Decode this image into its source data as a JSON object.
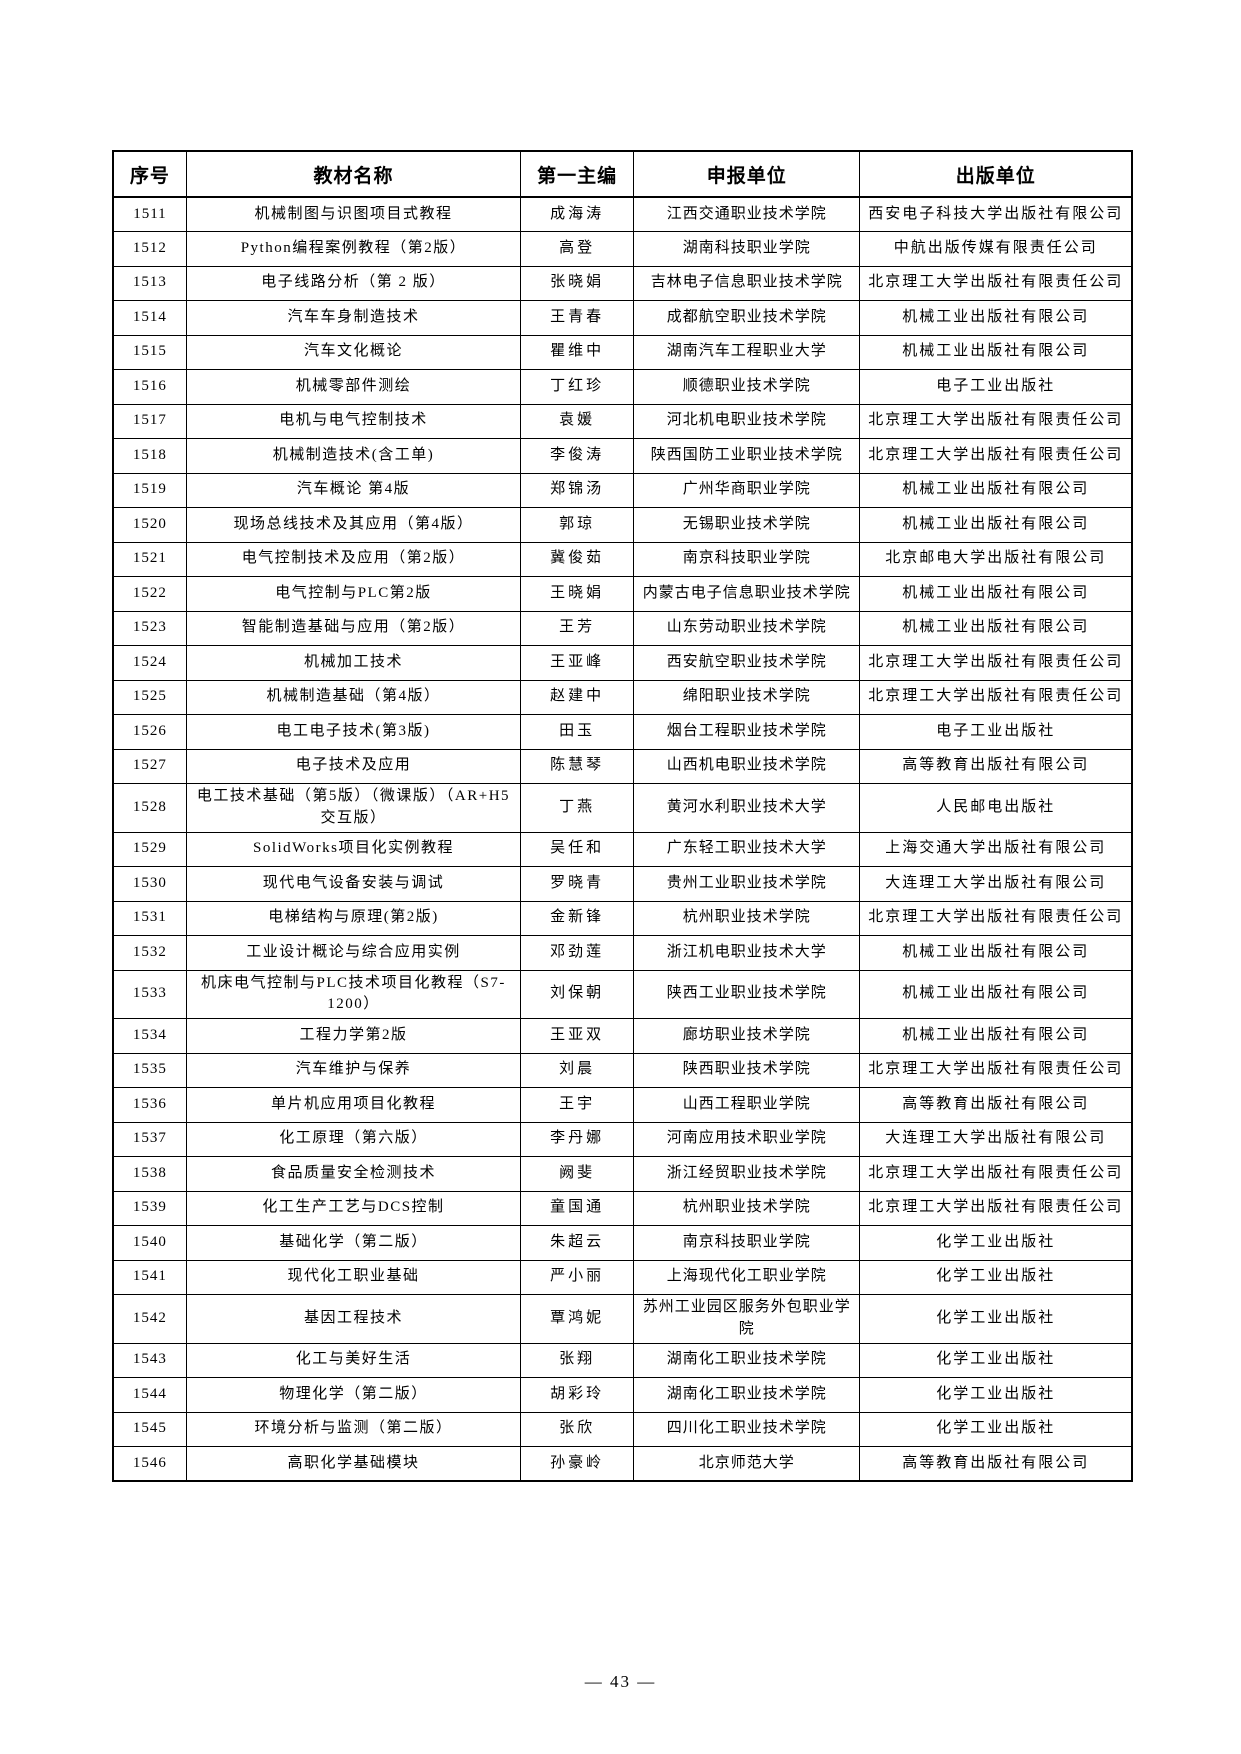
{
  "footer": {
    "page_label": "— 43 —"
  },
  "table": {
    "headers": [
      "序号",
      "教材名称",
      "第一主编",
      "申报单位",
      "出版单位"
    ],
    "rows": [
      [
        "1511",
        "机械制图与识图项目式教程",
        "成海涛",
        "江西交通职业技术学院",
        "西安电子科技大学出版社有限公司"
      ],
      [
        "1512",
        "Python编程案例教程（第2版）",
        "高登",
        "湖南科技职业学院",
        "中航出版传媒有限责任公司"
      ],
      [
        "1513",
        "电子线路分析（第 2 版）",
        "张晓娟",
        "吉林电子信息职业技术学院",
        "北京理工大学出版社有限责任公司"
      ],
      [
        "1514",
        "汽车车身制造技术",
        "王青春",
        "成都航空职业技术学院",
        "机械工业出版社有限公司"
      ],
      [
        "1515",
        "汽车文化概论",
        "瞿维中",
        "湖南汽车工程职业大学",
        "机械工业出版社有限公司"
      ],
      [
        "1516",
        "机械零部件测绘",
        "丁红珍",
        "顺德职业技术学院",
        "电子工业出版社"
      ],
      [
        "1517",
        "电机与电气控制技术",
        "袁媛",
        "河北机电职业技术学院",
        "北京理工大学出版社有限责任公司"
      ],
      [
        "1518",
        "机械制造技术(含工单)",
        "李俊涛",
        "陕西国防工业职业技术学院",
        "北京理工大学出版社有限责任公司"
      ],
      [
        "1519",
        "汽车概论 第4版",
        "郑锦汤",
        "广州华商职业学院",
        "机械工业出版社有限公司"
      ],
      [
        "1520",
        "现场总线技术及其应用（第4版）",
        "郭琼",
        "无锡职业技术学院",
        "机械工业出版社有限公司"
      ],
      [
        "1521",
        "电气控制技术及应用（第2版）",
        "冀俊茹",
        "南京科技职业学院",
        "北京邮电大学出版社有限公司"
      ],
      [
        "1522",
        "电气控制与PLC第2版",
        "王晓娟",
        "内蒙古电子信息职业技术学院",
        "机械工业出版社有限公司"
      ],
      [
        "1523",
        "智能制造基础与应用（第2版）",
        "王芳",
        "山东劳动职业技术学院",
        "机械工业出版社有限公司"
      ],
      [
        "1524",
        "机械加工技术",
        "王亚峰",
        "西安航空职业技术学院",
        "北京理工大学出版社有限责任公司"
      ],
      [
        "1525",
        "机械制造基础（第4版）",
        "赵建中",
        "绵阳职业技术学院",
        "北京理工大学出版社有限责任公司"
      ],
      [
        "1526",
        "电工电子技术(第3版)",
        "田玉",
        "烟台工程职业技术学院",
        "电子工业出版社"
      ],
      [
        "1527",
        "电子技术及应用",
        "陈慧琴",
        "山西机电职业技术学院",
        "高等教育出版社有限公司"
      ],
      [
        "1528",
        "电工技术基础（第5版）（微课版）（AR+H5交互版）",
        "丁燕",
        "黄河水利职业技术大学",
        "人民邮电出版社"
      ],
      [
        "1529",
        "SolidWorks项目化实例教程",
        "吴任和",
        "广东轻工职业技术大学",
        "上海交通大学出版社有限公司"
      ],
      [
        "1530",
        "现代电气设备安装与调试",
        "罗晓青",
        "贵州工业职业技术学院",
        "大连理工大学出版社有限公司"
      ],
      [
        "1531",
        "电梯结构与原理(第2版)",
        "金新锋",
        "杭州职业技术学院",
        "北京理工大学出版社有限责任公司"
      ],
      [
        "1532",
        "工业设计概论与综合应用实例",
        "邓劲莲",
        "浙江机电职业技术大学",
        "机械工业出版社有限公司"
      ],
      [
        "1533",
        "机床电气控制与PLC技术项目化教程（S7-1200）",
        "刘保朝",
        "陕西工业职业技术学院",
        "机械工业出版社有限公司"
      ],
      [
        "1534",
        "工程力学第2版",
        "王亚双",
        "廊坊职业技术学院",
        "机械工业出版社有限公司"
      ],
      [
        "1535",
        "汽车维护与保养",
        "刘晨",
        "陕西职业技术学院",
        "北京理工大学出版社有限责任公司"
      ],
      [
        "1536",
        "单片机应用项目化教程",
        "王宇",
        "山西工程职业学院",
        "高等教育出版社有限公司"
      ],
      [
        "1537",
        "化工原理（第六版）",
        "李丹娜",
        "河南应用技术职业学院",
        "大连理工大学出版社有限公司"
      ],
      [
        "1538",
        "食品质量安全检测技术",
        "阙斐",
        "浙江经贸职业技术学院",
        "北京理工大学出版社有限责任公司"
      ],
      [
        "1539",
        "化工生产工艺与DCS控制",
        "童国通",
        "杭州职业技术学院",
        "北京理工大学出版社有限责任公司"
      ],
      [
        "1540",
        "基础化学（第二版）",
        "朱超云",
        "南京科技职业学院",
        "化学工业出版社"
      ],
      [
        "1541",
        "现代化工职业基础",
        "严小丽",
        "上海现代化工职业学院",
        "化学工业出版社"
      ],
      [
        "1542",
        "基因工程技术",
        "覃鸿妮",
        "苏州工业园区服务外包职业学院",
        "化学工业出版社"
      ],
      [
        "1543",
        "化工与美好生活",
        "张翔",
        "湖南化工职业技术学院",
        "化学工业出版社"
      ],
      [
        "1544",
        "物理化学（第二版）",
        "胡彩玲",
        "湖南化工职业技术学院",
        "化学工业出版社"
      ],
      [
        "1545",
        "环境分析与监测（第二版）",
        "张欣",
        "四川化工职业技术学院",
        "化学工业出版社"
      ],
      [
        "1546",
        "高职化学基础模块",
        "孙豪岭",
        "北京师范大学",
        "高等教育出版社有限公司"
      ]
    ]
  }
}
